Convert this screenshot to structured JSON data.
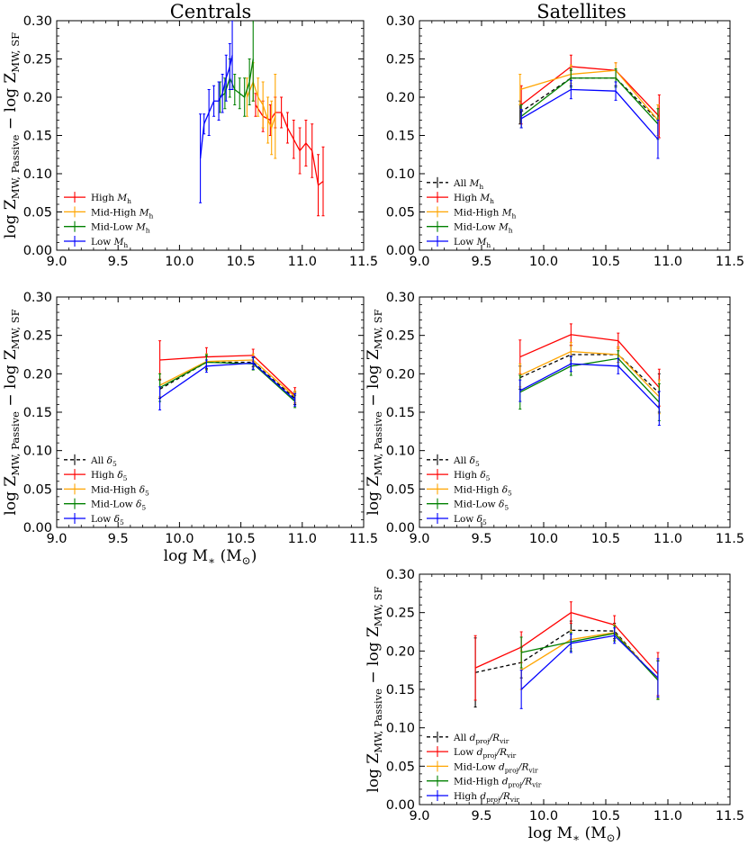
{
  "figure": {
    "column_titles": [
      "Centrals",
      "Satellites"
    ],
    "ylabel_main": "log Z",
    "ylabel_sub1": "MW, Passive",
    "ylabel_mid": " − log Z",
    "ylabel_sub2": "MW, SF",
    "xlabel_main": "log M",
    "xlabel_sub": "∗",
    "xlabel_unit": "(M",
    "xlabel_unit_sub": "⊙",
    "xlabel_close": ")"
  },
  "colors": {
    "red": "#ff0000",
    "orange": "#ffa500",
    "green": "#008000",
    "blue": "#0000ff",
    "black": "#000000"
  },
  "chart_data": [
    {
      "id": "centrals-halo",
      "type": "line",
      "xlim": [
        9.0,
        11.5
      ],
      "ylim": [
        0.0,
        0.3
      ],
      "xticks": [
        "9.0",
        "9.5",
        "10.0",
        "10.5",
        "11.0",
        "11.5"
      ],
      "yticks": [
        "0.00",
        "0.05",
        "0.10",
        "0.15",
        "0.20",
        "0.25",
        "0.30"
      ],
      "series": [
        {
          "name": "High M_h",
          "label": "High",
          "math": "M",
          "sub": "h",
          "color": "red",
          "dashed": false,
          "x": [
            10.62,
            10.68,
            10.74,
            10.78,
            10.83,
            10.88,
            10.93,
            10.98,
            11.03,
            11.08,
            11.13,
            11.17
          ],
          "y": [
            0.19,
            0.175,
            0.17,
            0.18,
            0.18,
            0.16,
            0.145,
            0.13,
            0.14,
            0.13,
            0.085,
            0.09
          ],
          "err": [
            0.015,
            0.02,
            0.02,
            0.02,
            0.02,
            0.02,
            0.025,
            0.03,
            0.03,
            0.035,
            0.04,
            0.045
          ]
        },
        {
          "name": "Mid-High M_h",
          "label": "Mid-High",
          "math": "M",
          "sub": "h",
          "color": "orange",
          "dashed": false,
          "x": [
            10.55,
            10.6,
            10.64,
            10.68,
            10.72,
            10.75,
            10.78
          ],
          "y": [
            0.2,
            0.22,
            0.2,
            0.19,
            0.17,
            0.16,
            0.175
          ],
          "err": [
            0.025,
            0.025,
            0.025,
            0.03,
            0.03,
            0.035,
            0.055
          ]
        },
        {
          "name": "Mid-Low M_h",
          "label": "Mid-Low",
          "math": "M",
          "sub": "h",
          "color": "green",
          "dashed": false,
          "x": [
            10.33,
            10.37,
            10.41,
            10.45,
            10.49,
            10.53,
            10.57,
            10.6
          ],
          "y": [
            0.2,
            0.205,
            0.225,
            0.21,
            0.205,
            0.2,
            0.22,
            0.25
          ],
          "err": [
            0.02,
            0.02,
            0.025,
            0.02,
            0.02,
            0.025,
            0.03,
            0.055
          ]
        },
        {
          "name": "Low M_h",
          "label": "Low",
          "math": "M",
          "sub": "h",
          "color": "blue",
          "dashed": false,
          "x": [
            10.17,
            10.2,
            10.24,
            10.28,
            10.32,
            10.35,
            10.38,
            10.41,
            10.43
          ],
          "y": [
            0.12,
            0.165,
            0.18,
            0.195,
            0.195,
            0.205,
            0.225,
            0.24,
            0.255
          ],
          "err": [
            0.058,
            0.013,
            0.03,
            0.02,
            0.025,
            0.025,
            0.03,
            0.03,
            0.045
          ]
        }
      ],
      "legend_position": "lower-left"
    },
    {
      "id": "satellites-halo",
      "type": "line",
      "xlim": [
        9.0,
        11.5
      ],
      "ylim": [
        0.0,
        0.3
      ],
      "xticks": [
        "9.0",
        "9.5",
        "10.0",
        "10.5",
        "11.0",
        "11.5"
      ],
      "yticks": [
        "0.00",
        "0.05",
        "0.10",
        "0.15",
        "0.20",
        "0.25",
        "0.30"
      ],
      "series": [
        {
          "name": "All M_h",
          "label": "All",
          "math": "M",
          "sub": "h",
          "color": "black",
          "dashed": true,
          "x": [
            9.81,
            10.22,
            10.58,
            10.92
          ],
          "y": [
            0.18,
            0.225,
            0.225,
            0.17
          ],
          "err": [
            0.015,
            0.01,
            0.01,
            0.02
          ]
        },
        {
          "name": "High M_h",
          "label": "High",
          "math": "M",
          "sub": "h",
          "color": "red",
          "dashed": false,
          "x": [
            9.82,
            10.22,
            10.58,
            10.93
          ],
          "y": [
            0.19,
            0.24,
            0.235,
            0.175
          ],
          "err": [
            0.025,
            0.015,
            0.01,
            0.028
          ]
        },
        {
          "name": "Mid-High M_h",
          "label": "Mid-High",
          "math": "M",
          "sub": "h",
          "color": "orange",
          "dashed": false,
          "x": [
            9.81,
            10.22,
            10.58,
            10.92
          ],
          "y": [
            0.21,
            0.23,
            0.235,
            0.17
          ],
          "err": [
            0.02,
            0.012,
            0.01,
            0.02
          ]
        },
        {
          "name": "Mid-Low M_h",
          "label": "Mid-Low",
          "math": "M",
          "sub": "h",
          "color": "green",
          "dashed": false,
          "x": [
            9.82,
            10.22,
            10.58,
            10.92
          ],
          "y": [
            0.175,
            0.225,
            0.225,
            0.165
          ],
          "err": [
            0.015,
            0.012,
            0.012,
            0.02
          ]
        },
        {
          "name": "Low M_h",
          "label": "Low",
          "math": "M",
          "sub": "h",
          "color": "blue",
          "dashed": false,
          "x": [
            9.82,
            10.22,
            10.58,
            10.92
          ],
          "y": [
            0.172,
            0.21,
            0.208,
            0.145
          ],
          "err": [
            0.012,
            0.012,
            0.012,
            0.025
          ]
        }
      ],
      "legend_position": "lower-left"
    },
    {
      "id": "centrals-density",
      "type": "line",
      "xlim": [
        9.0,
        11.5
      ],
      "ylim": [
        0.0,
        0.3
      ],
      "xticks": [
        "9.0",
        "9.5",
        "10.0",
        "10.5",
        "11.0",
        "11.5"
      ],
      "yticks": [
        "0.00",
        "0.05",
        "0.10",
        "0.15",
        "0.20",
        "0.25",
        "0.30"
      ],
      "series": [
        {
          "name": "All δ5",
          "label": "All",
          "math": "δ",
          "sub": "5",
          "color": "black",
          "dashed": true,
          "x": [
            9.84,
            10.22,
            10.6,
            10.94
          ],
          "y": [
            0.18,
            0.215,
            0.215,
            0.168
          ],
          "err": [
            0.012,
            0.008,
            0.006,
            0.008
          ]
        },
        {
          "name": "High δ5",
          "label": "High",
          "math": "δ",
          "sub": "5",
          "color": "red",
          "dashed": false,
          "x": [
            9.84,
            10.22,
            10.6,
            10.94
          ],
          "y": [
            0.218,
            0.222,
            0.224,
            0.172
          ],
          "err": [
            0.025,
            0.012,
            0.008,
            0.01
          ]
        },
        {
          "name": "Mid-High δ5",
          "label": "Mid-High",
          "math": "δ",
          "sub": "5",
          "color": "orange",
          "dashed": false,
          "x": [
            9.84,
            10.22,
            10.6,
            10.94
          ],
          "y": [
            0.185,
            0.216,
            0.218,
            0.17
          ],
          "err": [
            0.015,
            0.01,
            0.008,
            0.008
          ]
        },
        {
          "name": "Mid-Low δ5",
          "label": "Mid-Low",
          "math": "δ",
          "sub": "5",
          "color": "green",
          "dashed": false,
          "x": [
            9.84,
            10.22,
            10.6,
            10.94
          ],
          "y": [
            0.182,
            0.215,
            0.213,
            0.164
          ],
          "err": [
            0.018,
            0.01,
            0.008,
            0.008
          ]
        },
        {
          "name": "Low δ5",
          "label": "Low",
          "math": "δ",
          "sub": "5",
          "color": "blue",
          "dashed": false,
          "x": [
            9.84,
            10.22,
            10.6,
            10.94
          ],
          "y": [
            0.168,
            0.21,
            0.214,
            0.166
          ],
          "err": [
            0.015,
            0.008,
            0.008,
            0.008
          ]
        }
      ],
      "legend_position": "lower-left"
    },
    {
      "id": "satellites-density",
      "type": "line",
      "xlim": [
        9.0,
        11.5
      ],
      "ylim": [
        0.0,
        0.3
      ],
      "xticks": [
        "9.0",
        "9.5",
        "10.0",
        "10.5",
        "11.0",
        "11.5"
      ],
      "yticks": [
        "0.00",
        "0.05",
        "0.10",
        "0.15",
        "0.20",
        "0.25",
        "0.30"
      ],
      "series": [
        {
          "name": "All δ5",
          "label": "All",
          "math": "δ",
          "sub": "5",
          "color": "black",
          "dashed": true,
          "x": [
            9.81,
            10.22,
            10.6,
            10.93
          ],
          "y": [
            0.195,
            0.225,
            0.225,
            0.175
          ],
          "err": [
            0.015,
            0.012,
            0.01,
            0.025
          ]
        },
        {
          "name": "High δ5",
          "label": "High",
          "math": "δ",
          "sub": "5",
          "color": "red",
          "dashed": false,
          "x": [
            9.81,
            10.22,
            10.6,
            10.93
          ],
          "y": [
            0.222,
            0.251,
            0.243,
            0.182
          ],
          "err": [
            0.022,
            0.014,
            0.01,
            0.024
          ]
        },
        {
          "name": "Mid-High δ5",
          "label": "Mid-High",
          "math": "δ",
          "sub": "5",
          "color": "orange",
          "dashed": false,
          "x": [
            9.81,
            10.22,
            10.6,
            10.93
          ],
          "y": [
            0.198,
            0.229,
            0.225,
            0.17
          ],
          "err": [
            0.015,
            0.012,
            0.01,
            0.022
          ]
        },
        {
          "name": "Mid-Low δ5",
          "label": "Mid-Low",
          "math": "δ",
          "sub": "5",
          "color": "green",
          "dashed": false,
          "x": [
            9.81,
            10.22,
            10.6,
            10.93
          ],
          "y": [
            0.176,
            0.21,
            0.22,
            0.163
          ],
          "err": [
            0.022,
            0.012,
            0.01,
            0.024
          ]
        },
        {
          "name": "Low δ5",
          "label": "Low",
          "math": "δ",
          "sub": "5",
          "color": "blue",
          "dashed": false,
          "x": [
            9.81,
            10.22,
            10.6,
            10.93
          ],
          "y": [
            0.178,
            0.213,
            0.21,
            0.155
          ],
          "err": [
            0.014,
            0.01,
            0.01,
            0.022
          ]
        }
      ],
      "legend_position": "lower-left"
    },
    {
      "id": "satellites-distance",
      "type": "line",
      "xlim": [
        9.0,
        11.5
      ],
      "ylim": [
        0.0,
        0.3
      ],
      "xticks": [
        "9.0",
        "9.5",
        "10.0",
        "10.5",
        "11.0",
        "11.5"
      ],
      "yticks": [
        "0.00",
        "0.05",
        "0.10",
        "0.15",
        "0.20",
        "0.25",
        "0.30"
      ],
      "series": [
        {
          "name": "All dproj/Rvir",
          "label": "All",
          "math": "d",
          "sub": "proj",
          "math2": "/R",
          "sub2": "vir",
          "color": "black",
          "dashed": true,
          "x": [
            9.45,
            9.82,
            10.22,
            10.57,
            10.92
          ],
          "y": [
            0.172,
            0.185,
            0.227,
            0.226,
            0.162
          ],
          "err": [
            0.045,
            0.02,
            0.012,
            0.01,
            0.025
          ]
        },
        {
          "name": "Low dproj/Rvir",
          "label": "Low",
          "math": "d",
          "sub": "proj",
          "math2": "/R",
          "sub2": "vir",
          "color": "red",
          "dashed": false,
          "x": [
            9.45,
            9.82,
            10.22,
            10.57,
            10.92
          ],
          "y": [
            0.178,
            0.205,
            0.25,
            0.234,
            0.17
          ],
          "err": [
            0.042,
            0.02,
            0.014,
            0.012,
            0.028
          ]
        },
        {
          "name": "Mid-Low dproj/Rvir",
          "label": "Mid-Low",
          "math": "d",
          "sub": "proj",
          "math2": "/R",
          "sub2": "vir",
          "color": "orange",
          "dashed": false,
          "x": [
            9.82,
            10.22,
            10.57,
            10.92
          ],
          "y": [
            0.175,
            0.215,
            0.224,
            0.163
          ],
          "err": [
            0.025,
            0.012,
            0.01,
            0.025
          ]
        },
        {
          "name": "Mid-High dproj/Rvir",
          "label": "Mid-High",
          "math": "d",
          "sub": "proj",
          "math2": "/R",
          "sub2": "vir",
          "color": "green",
          "dashed": false,
          "x": [
            9.82,
            10.22,
            10.57,
            10.92
          ],
          "y": [
            0.198,
            0.212,
            0.223,
            0.162
          ],
          "err": [
            0.02,
            0.012,
            0.01,
            0.025
          ]
        },
        {
          "name": "High dproj/Rvir",
          "label": "High",
          "math": "d",
          "sub": "proj",
          "math2": "/R",
          "sub2": "vir",
          "color": "blue",
          "dashed": false,
          "x": [
            9.82,
            10.22,
            10.57,
            10.92
          ],
          "y": [
            0.15,
            0.21,
            0.22,
            0.165
          ],
          "err": [
            0.025,
            0.012,
            0.01,
            0.025
          ]
        }
      ],
      "legend_position": "lower-left"
    }
  ]
}
